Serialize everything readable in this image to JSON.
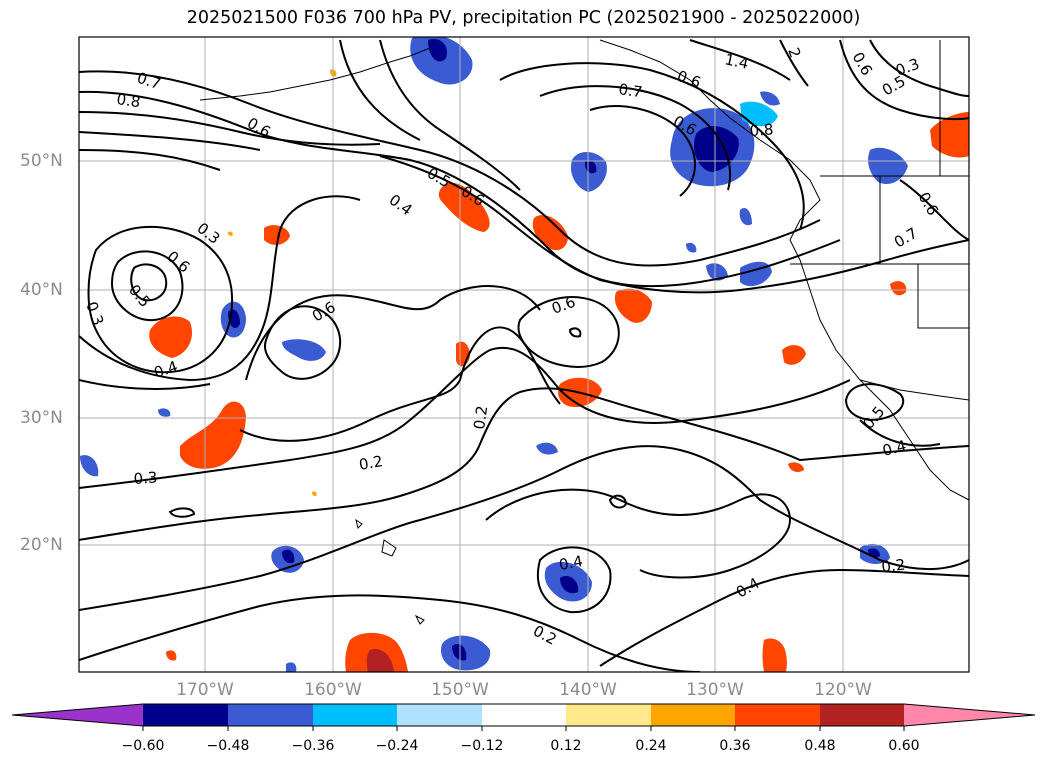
{
  "title": "2025021500 F036 700 hPa PV, precipitation PC (2025021900 - 2025022000)",
  "map": {
    "lat_labels": [
      "50°N",
      "40°N",
      "30°N",
      "20°N"
    ],
    "lon_labels": [
      "170°W",
      "160°W",
      "150°W",
      "140°W",
      "130°W",
      "120°W"
    ]
  },
  "contour_labels": [
    "0.7",
    "0.8",
    "0.6",
    "0.3",
    "0.6",
    "0.5",
    "0.3",
    "0.4",
    "0.6",
    "0.5",
    "0.6",
    "0.4",
    "0.6",
    "0.2",
    "0.2",
    "0.3",
    "0.7",
    "1.4",
    "2",
    "0.6",
    "0.8",
    "0.6",
    "0.3",
    "0.5",
    "0.6",
    "0.7",
    "0.5",
    "0.4",
    "0.4",
    "0.2",
    "0.4",
    "0.2",
    "0.6"
  ],
  "colorbar": {
    "colors": [
      "#9933cc",
      "#00008b",
      "#3a5bd1",
      "#00bfff",
      "#b0e2ff",
      "#ffffff",
      "#ffe98a",
      "#ffa500",
      "#ff4500",
      "#b22222",
      "#ff88aa"
    ],
    "tick_labels": [
      "−0.60",
      "−0.48",
      "−0.36",
      "−0.24",
      "−0.12",
      "0.12",
      "0.24",
      "0.36",
      "0.48",
      "0.60"
    ]
  }
}
